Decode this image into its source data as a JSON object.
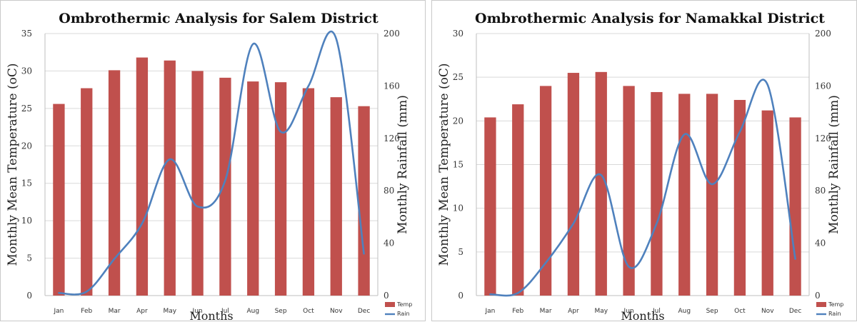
{
  "chart_data": [
    {
      "type": "bar+line",
      "title": "Ombrothermic Analysis for Salem District",
      "xlabel": "Months",
      "ylabel_left": "Monthly Mean Temperature (oC)",
      "ylabel_right": "Monthly Rainfall (mm)",
      "categories": [
        "Jan",
        "Feb",
        "Mar",
        "Apr",
        "May",
        "Jun",
        "Jul",
        "Aug",
        "Sep",
        "Oct",
        "Nov",
        "Dec"
      ],
      "ylim_left": [
        0,
        35
      ],
      "yticks_left": [
        0,
        5,
        10,
        15,
        20,
        25,
        30,
        35
      ],
      "ylim_right": [
        0,
        200
      ],
      "yticks_right": [
        0,
        40,
        80,
        120,
        160,
        200
      ],
      "series": [
        {
          "name": "Temp",
          "axis": "left",
          "kind": "bar",
          "color": "#c0504d",
          "values": [
            25.6,
            27.7,
            30.1,
            31.8,
            31.4,
            30.0,
            29.1,
            28.6,
            28.5,
            27.7,
            26.5,
            25.3
          ]
        },
        {
          "name": "Rain",
          "axis": "right",
          "kind": "line",
          "color": "#4f81bd",
          "values": [
            2,
            3,
            28,
            55,
            104,
            68,
            88,
            192,
            125,
            160,
            196,
            32
          ]
        }
      ]
    },
    {
      "type": "bar+line",
      "title": "Ombrothermic Analysis for Namakkal District",
      "xlabel": "Months",
      "ylabel_left": "Monthly Mean Temperature (oC)",
      "ylabel_right": "Monthly Rainfall (mm)",
      "categories": [
        "Jan",
        "Feb",
        "Mar",
        "Apr",
        "May",
        "Jun",
        "Jul",
        "Aug",
        "Sep",
        "Oct",
        "Nov",
        "Dec"
      ],
      "ylim_left": [
        0,
        30
      ],
      "yticks_left": [
        0,
        5,
        10,
        15,
        20,
        25,
        30
      ],
      "ylim_right": [
        0,
        200
      ],
      "yticks_right": [
        0,
        40,
        80,
        120,
        160,
        200
      ],
      "series": [
        {
          "name": "Temp",
          "axis": "left",
          "kind": "bar",
          "color": "#c0504d",
          "values": [
            20.4,
            21.9,
            24.0,
            25.5,
            25.6,
            24.0,
            23.3,
            23.1,
            23.1,
            22.4,
            21.2,
            20.4
          ]
        },
        {
          "name": "Rain",
          "axis": "right",
          "kind": "line",
          "color": "#4f81bd",
          "values": [
            1,
            2,
            25,
            55,
            92,
            22,
            55,
            123,
            85,
            125,
            161,
            28
          ]
        }
      ]
    }
  ]
}
